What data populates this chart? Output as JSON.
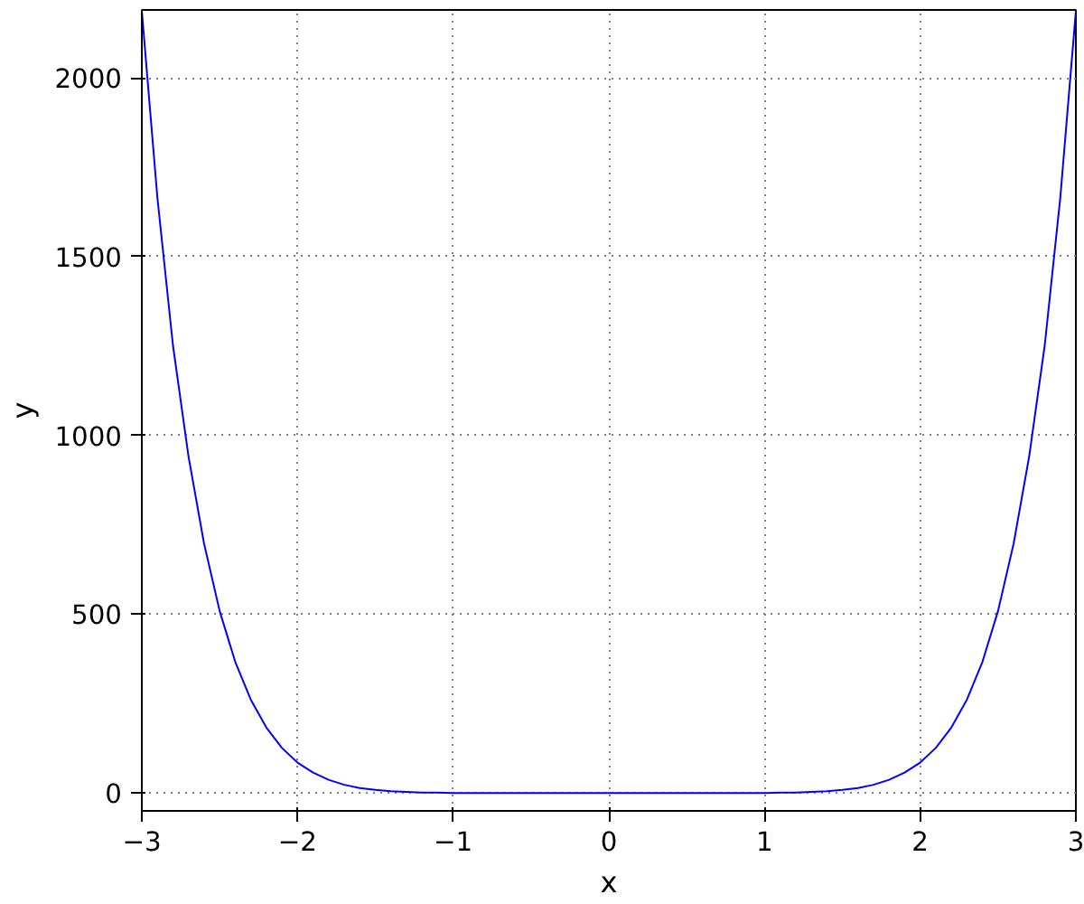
{
  "chart_data": {
    "type": "line",
    "xlabel": "x",
    "ylabel": "y",
    "x": [
      -3,
      -2.9,
      -2.8,
      -2.7,
      -2.6,
      -2.5,
      -2.4,
      -2.3,
      -2.2,
      -2.1,
      -2,
      -1.9,
      -1.8,
      -1.7,
      -1.6,
      -1.5,
      -1.4,
      -1.3,
      -1.2,
      -1.1,
      -1,
      -0.5,
      0,
      0.5,
      1,
      1.1,
      1.2,
      1.3,
      1.4,
      1.5,
      1.6,
      1.7,
      1.8,
      1.9,
      2,
      2.1,
      2.2,
      2.3,
      2.4,
      2.5,
      2.6,
      2.7,
      2.8,
      2.9,
      3
    ],
    "series": [
      {
        "color": "#0000ff",
        "values": [
          2187,
          1665,
          1252,
          941,
          697,
          509,
          367,
          261,
          183,
          126,
          85,
          57,
          37,
          23,
          14,
          9,
          5,
          3,
          1,
          1,
          0,
          0,
          0,
          0,
          0,
          1,
          1,
          3,
          5,
          9,
          14,
          23,
          37,
          57,
          85,
          126,
          183,
          261,
          367,
          509,
          697,
          941,
          1252,
          1665,
          2187
        ]
      }
    ],
    "xlim": [
      -3,
      3
    ],
    "ylim": [
      -50,
      2190
    ],
    "xticks": [
      -3,
      -2,
      -1,
      0,
      1,
      2,
      3
    ],
    "yticks": [
      0,
      500,
      1000,
      1500,
      2000
    ],
    "grid": true,
    "line_style": "solid",
    "marker": "none"
  }
}
